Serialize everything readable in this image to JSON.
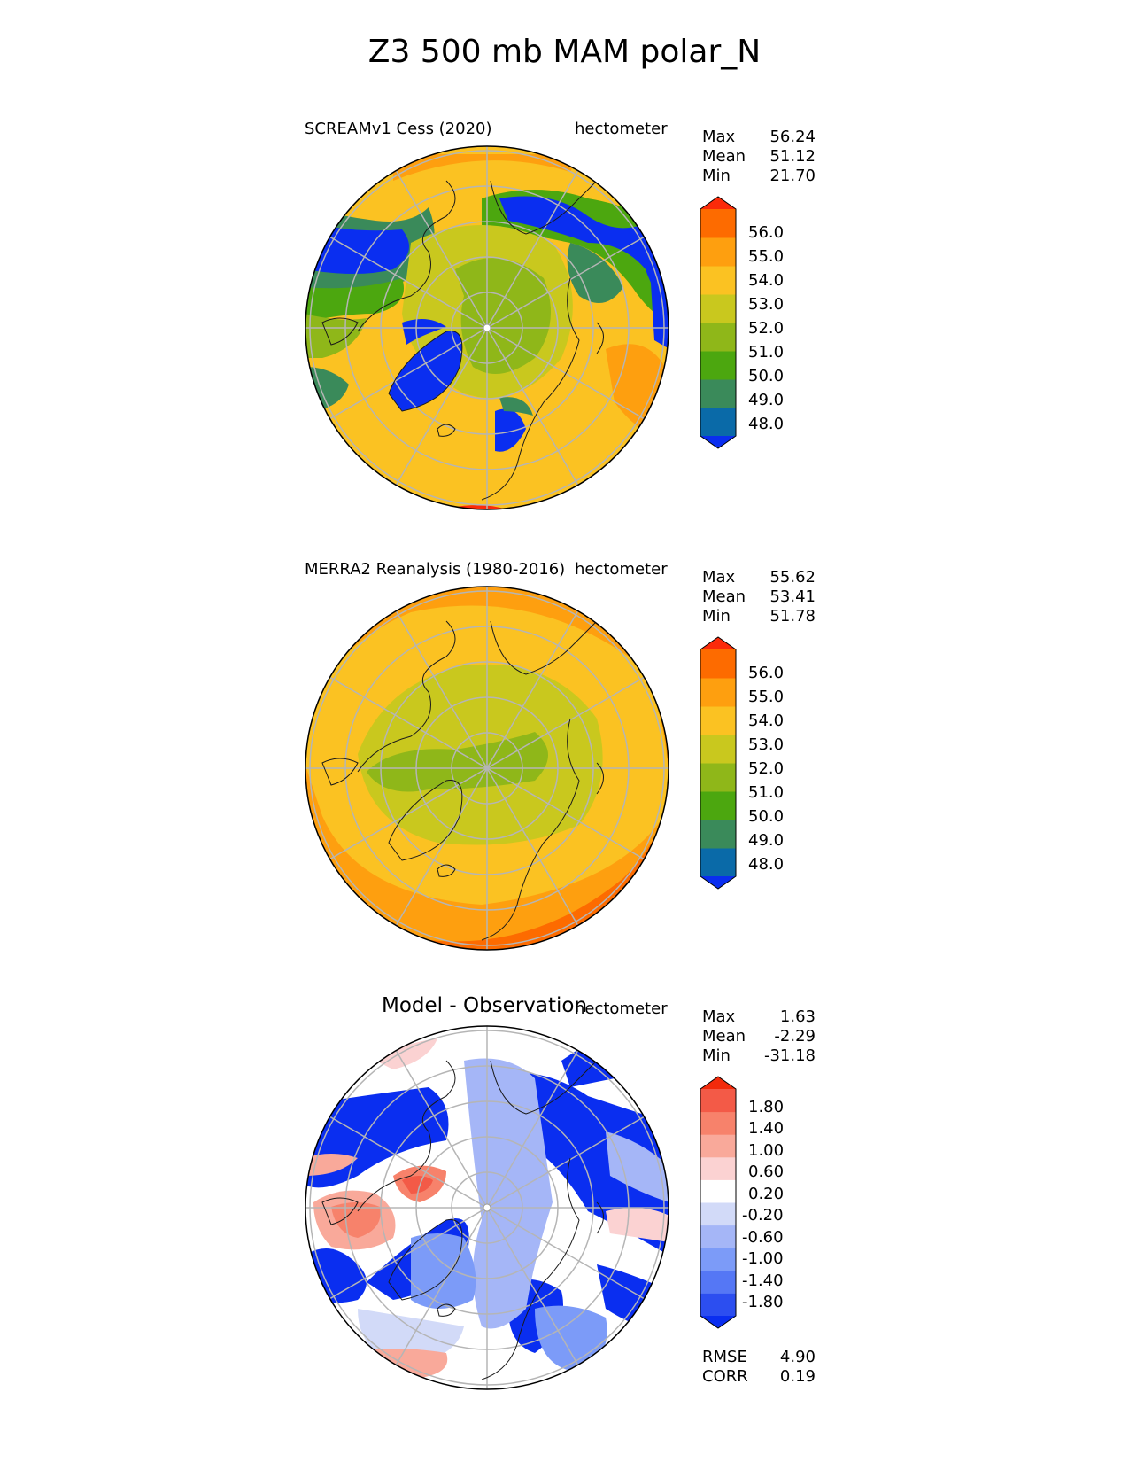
{
  "figure_title": "Z3 500 mb MAM polar_N",
  "colors": {
    "abs_palette": [
      "#0a2ef0",
      "#0a6aa8",
      "#3a8a5a",
      "#4ca70f",
      "#8fb719",
      "#c9c81e",
      "#fbc222",
      "#fe9f0f",
      "#fd6b00",
      "#fb2a0a"
    ],
    "diff_palette": [
      "#0a2ef0",
      "#2c4ef0",
      "#5577f5",
      "#7c9bf8",
      "#a5b6f7",
      "#d2daf8",
      "#ffffff",
      "#fbd2d2",
      "#f9a99a",
      "#f7826b",
      "#f35a47",
      "#f22a0b"
    ],
    "gridline": "#b5b5b5",
    "coastline": "#1a1a1a"
  },
  "panels": [
    {
      "title": "SCREAMv1 Cess (2020)",
      "units": "hectometer",
      "stats": [
        {
          "label": "Max",
          "value": "56.24"
        },
        {
          "label": "Mean",
          "value": "51.12"
        },
        {
          "label": "Min",
          "value": "21.70"
        }
      ],
      "colorbar_ticks": [
        "56.0",
        "55.0",
        "54.0",
        "53.0",
        "52.0",
        "51.0",
        "50.0",
        "49.0",
        "48.0"
      ]
    },
    {
      "title": "MERRA2 Reanalysis (1980-2016)",
      "units": "hectometer",
      "stats": [
        {
          "label": "Max",
          "value": "55.62"
        },
        {
          "label": "Mean",
          "value": "53.41"
        },
        {
          "label": "Min",
          "value": "51.78"
        }
      ],
      "colorbar_ticks": [
        "56.0",
        "55.0",
        "54.0",
        "53.0",
        "52.0",
        "51.0",
        "50.0",
        "49.0",
        "48.0"
      ]
    },
    {
      "title": "Model - Observation",
      "units": "hectometer",
      "stats": [
        {
          "label": "Max",
          "value": "1.63"
        },
        {
          "label": "Mean",
          "value": "-2.29"
        },
        {
          "label": "Min",
          "value": "-31.18"
        }
      ],
      "colorbar_ticks": [
        "1.80",
        "1.40",
        "1.00",
        "0.60",
        "0.20",
        "-0.20",
        "-0.60",
        "-1.00",
        "-1.40",
        "-1.80"
      ],
      "metrics": [
        {
          "label": "RMSE",
          "value": "4.90"
        },
        {
          "label": "CORR",
          "value": "0.19"
        }
      ]
    }
  ],
  "chart_data": [
    {
      "type": "heatmap",
      "projection": "north-polar-stereographic",
      "title": "SCREAMv1 Cess (2020)",
      "variable": "Z3 500 mb",
      "season": "MAM",
      "units": "hectometer",
      "levels": [
        48.0,
        49.0,
        50.0,
        51.0,
        52.0,
        53.0,
        54.0,
        55.0,
        56.0
      ],
      "extend": "both",
      "max": 56.24,
      "mean": 51.12,
      "min": 21.7
    },
    {
      "type": "heatmap",
      "projection": "north-polar-stereographic",
      "title": "MERRA2 Reanalysis (1980-2016)",
      "variable": "Z3 500 mb",
      "season": "MAM",
      "units": "hectometer",
      "levels": [
        48.0,
        49.0,
        50.0,
        51.0,
        52.0,
        53.0,
        54.0,
        55.0,
        56.0
      ],
      "extend": "both",
      "max": 55.62,
      "mean": 53.41,
      "min": 51.78
    },
    {
      "type": "heatmap",
      "projection": "north-polar-stereographic",
      "title": "Model - Observation",
      "variable": "Z3 500 mb difference",
      "season": "MAM",
      "units": "hectometer",
      "levels": [
        -1.8,
        -1.4,
        -1.0,
        -0.6,
        -0.2,
        0.2,
        0.6,
        1.0,
        1.4,
        1.8
      ],
      "extend": "both",
      "max": 1.63,
      "mean": -2.29,
      "min": -31.18,
      "rmse": 4.9,
      "corr": 0.19
    }
  ]
}
